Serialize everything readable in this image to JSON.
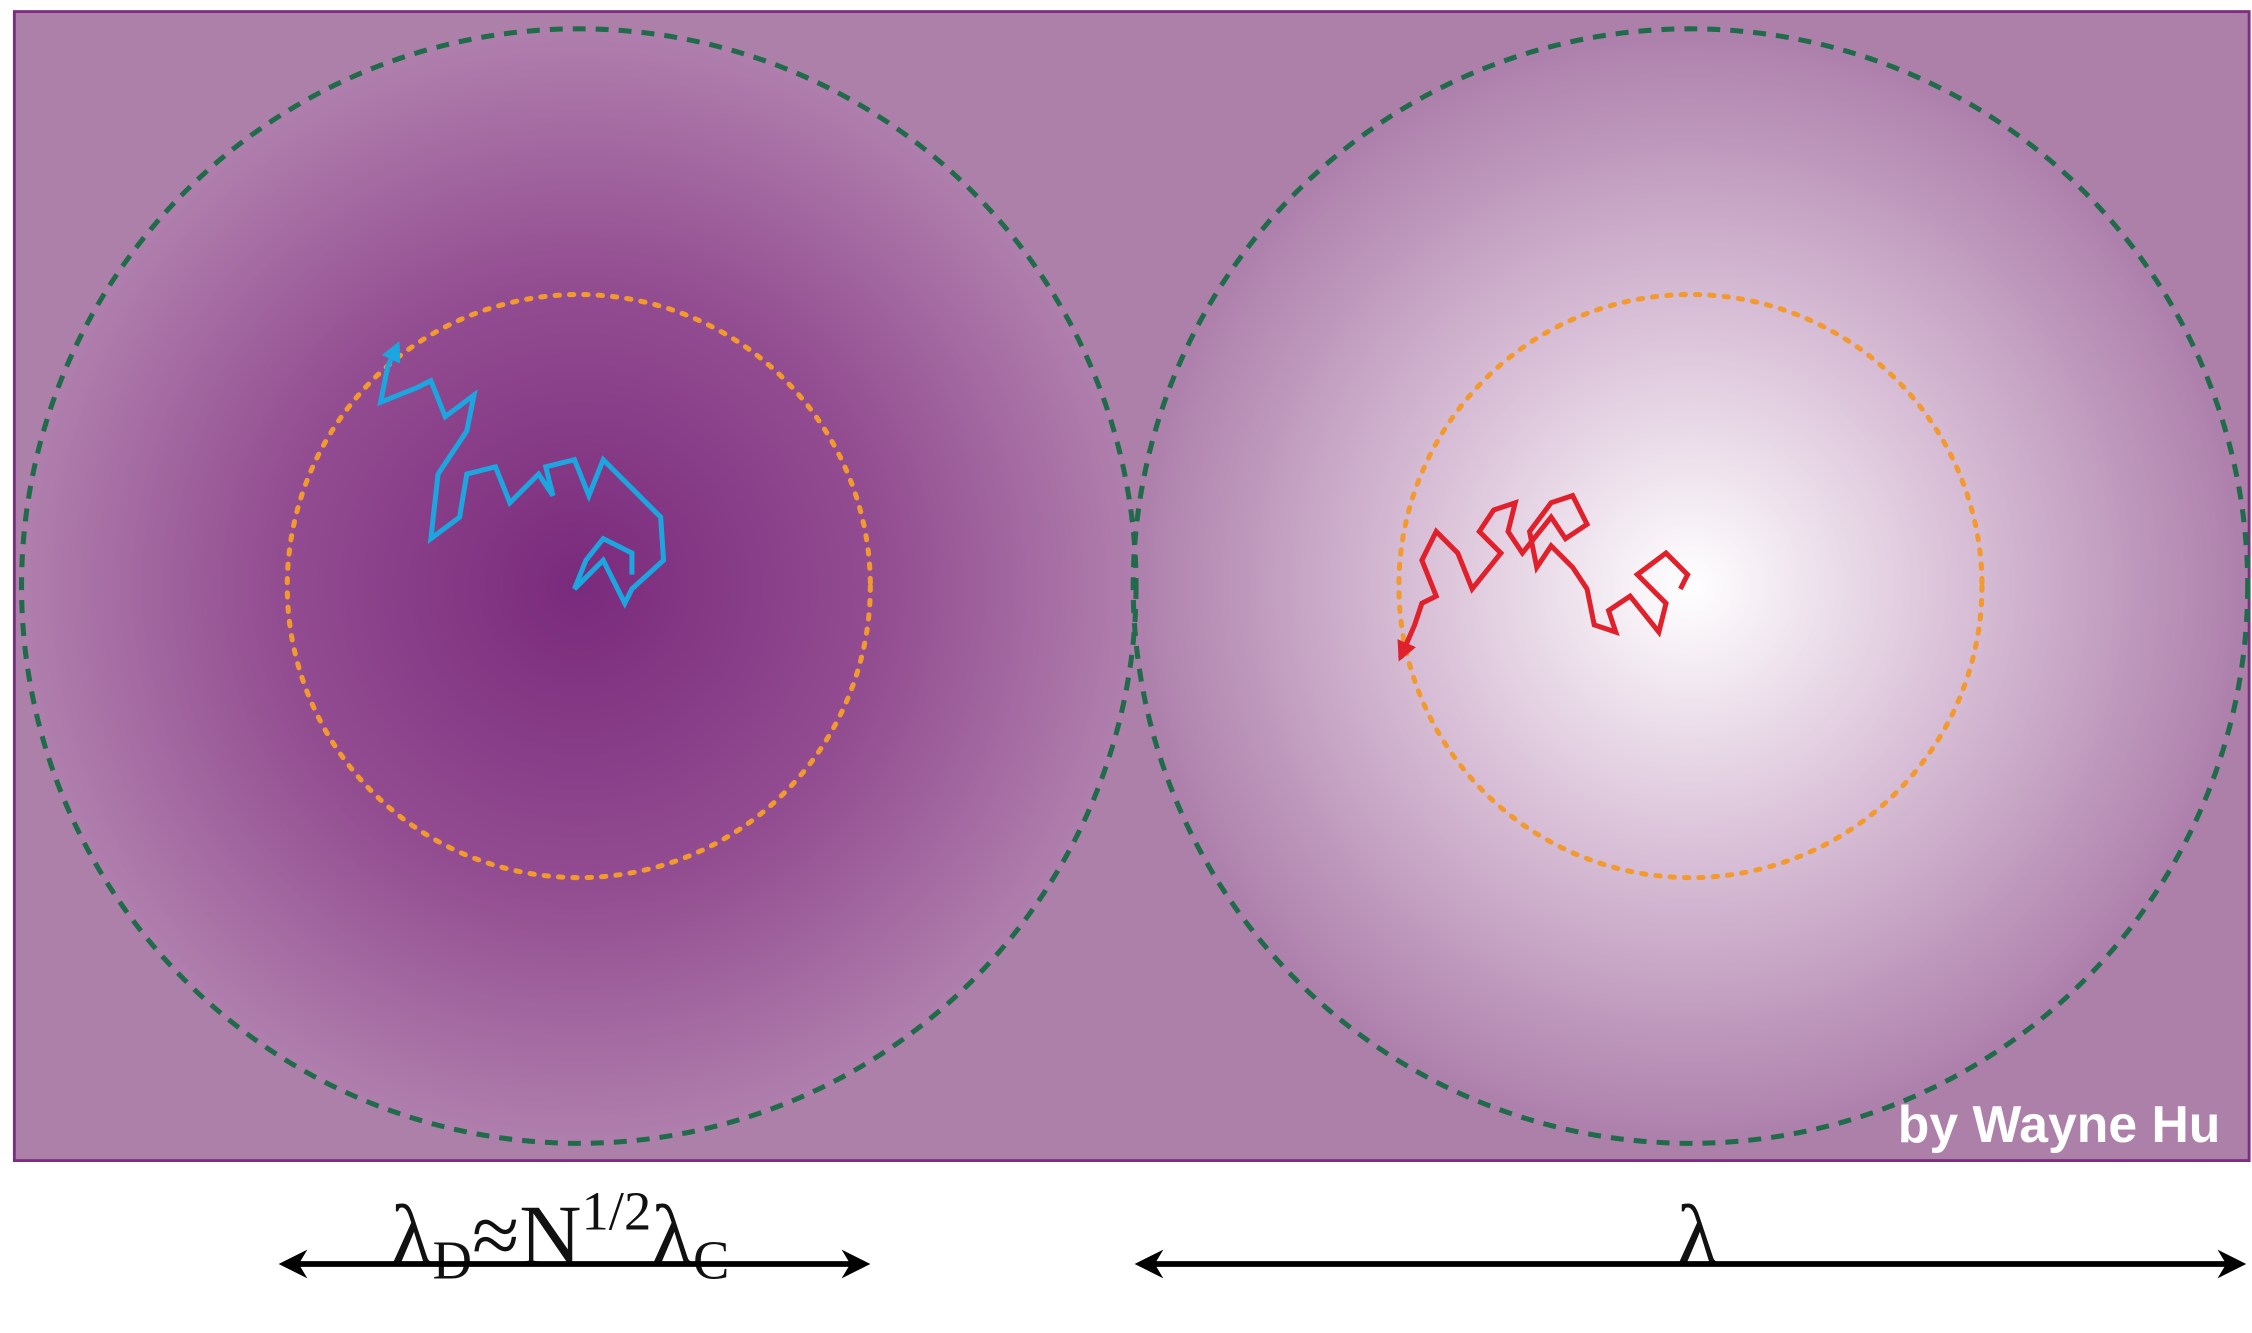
{
  "labels": {
    "damping_scale": {
      "parts": [
        "λ",
        "D",
        "≈N",
        "1/2",
        "λ",
        "C"
      ]
    },
    "wavelength": "λ",
    "credit": "by Wayne Hu"
  }
}
